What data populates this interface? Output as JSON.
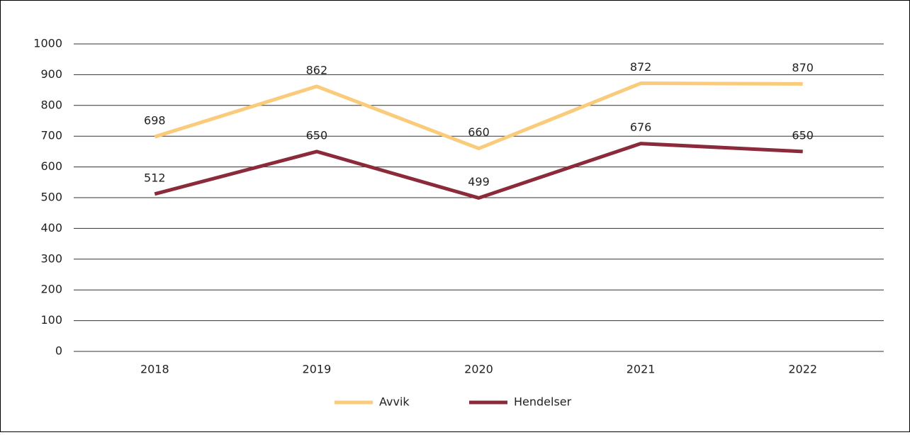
{
  "chart_data": {
    "type": "line",
    "categories": [
      "2018",
      "2019",
      "2020",
      "2021",
      "2022"
    ],
    "series": [
      {
        "name": "Avvik",
        "color": "#f9cb7a",
        "values": [
          698,
          862,
          660,
          872,
          870
        ]
      },
      {
        "name": "Hendelser",
        "color": "#8b2a3b",
        "values": [
          512,
          650,
          499,
          676,
          650
        ]
      }
    ],
    "ylim": [
      0,
      1000
    ],
    "yticks": [
      0,
      100,
      200,
      300,
      400,
      500,
      600,
      700,
      800,
      900,
      1000
    ],
    "grid": true,
    "legend": "bottom"
  }
}
